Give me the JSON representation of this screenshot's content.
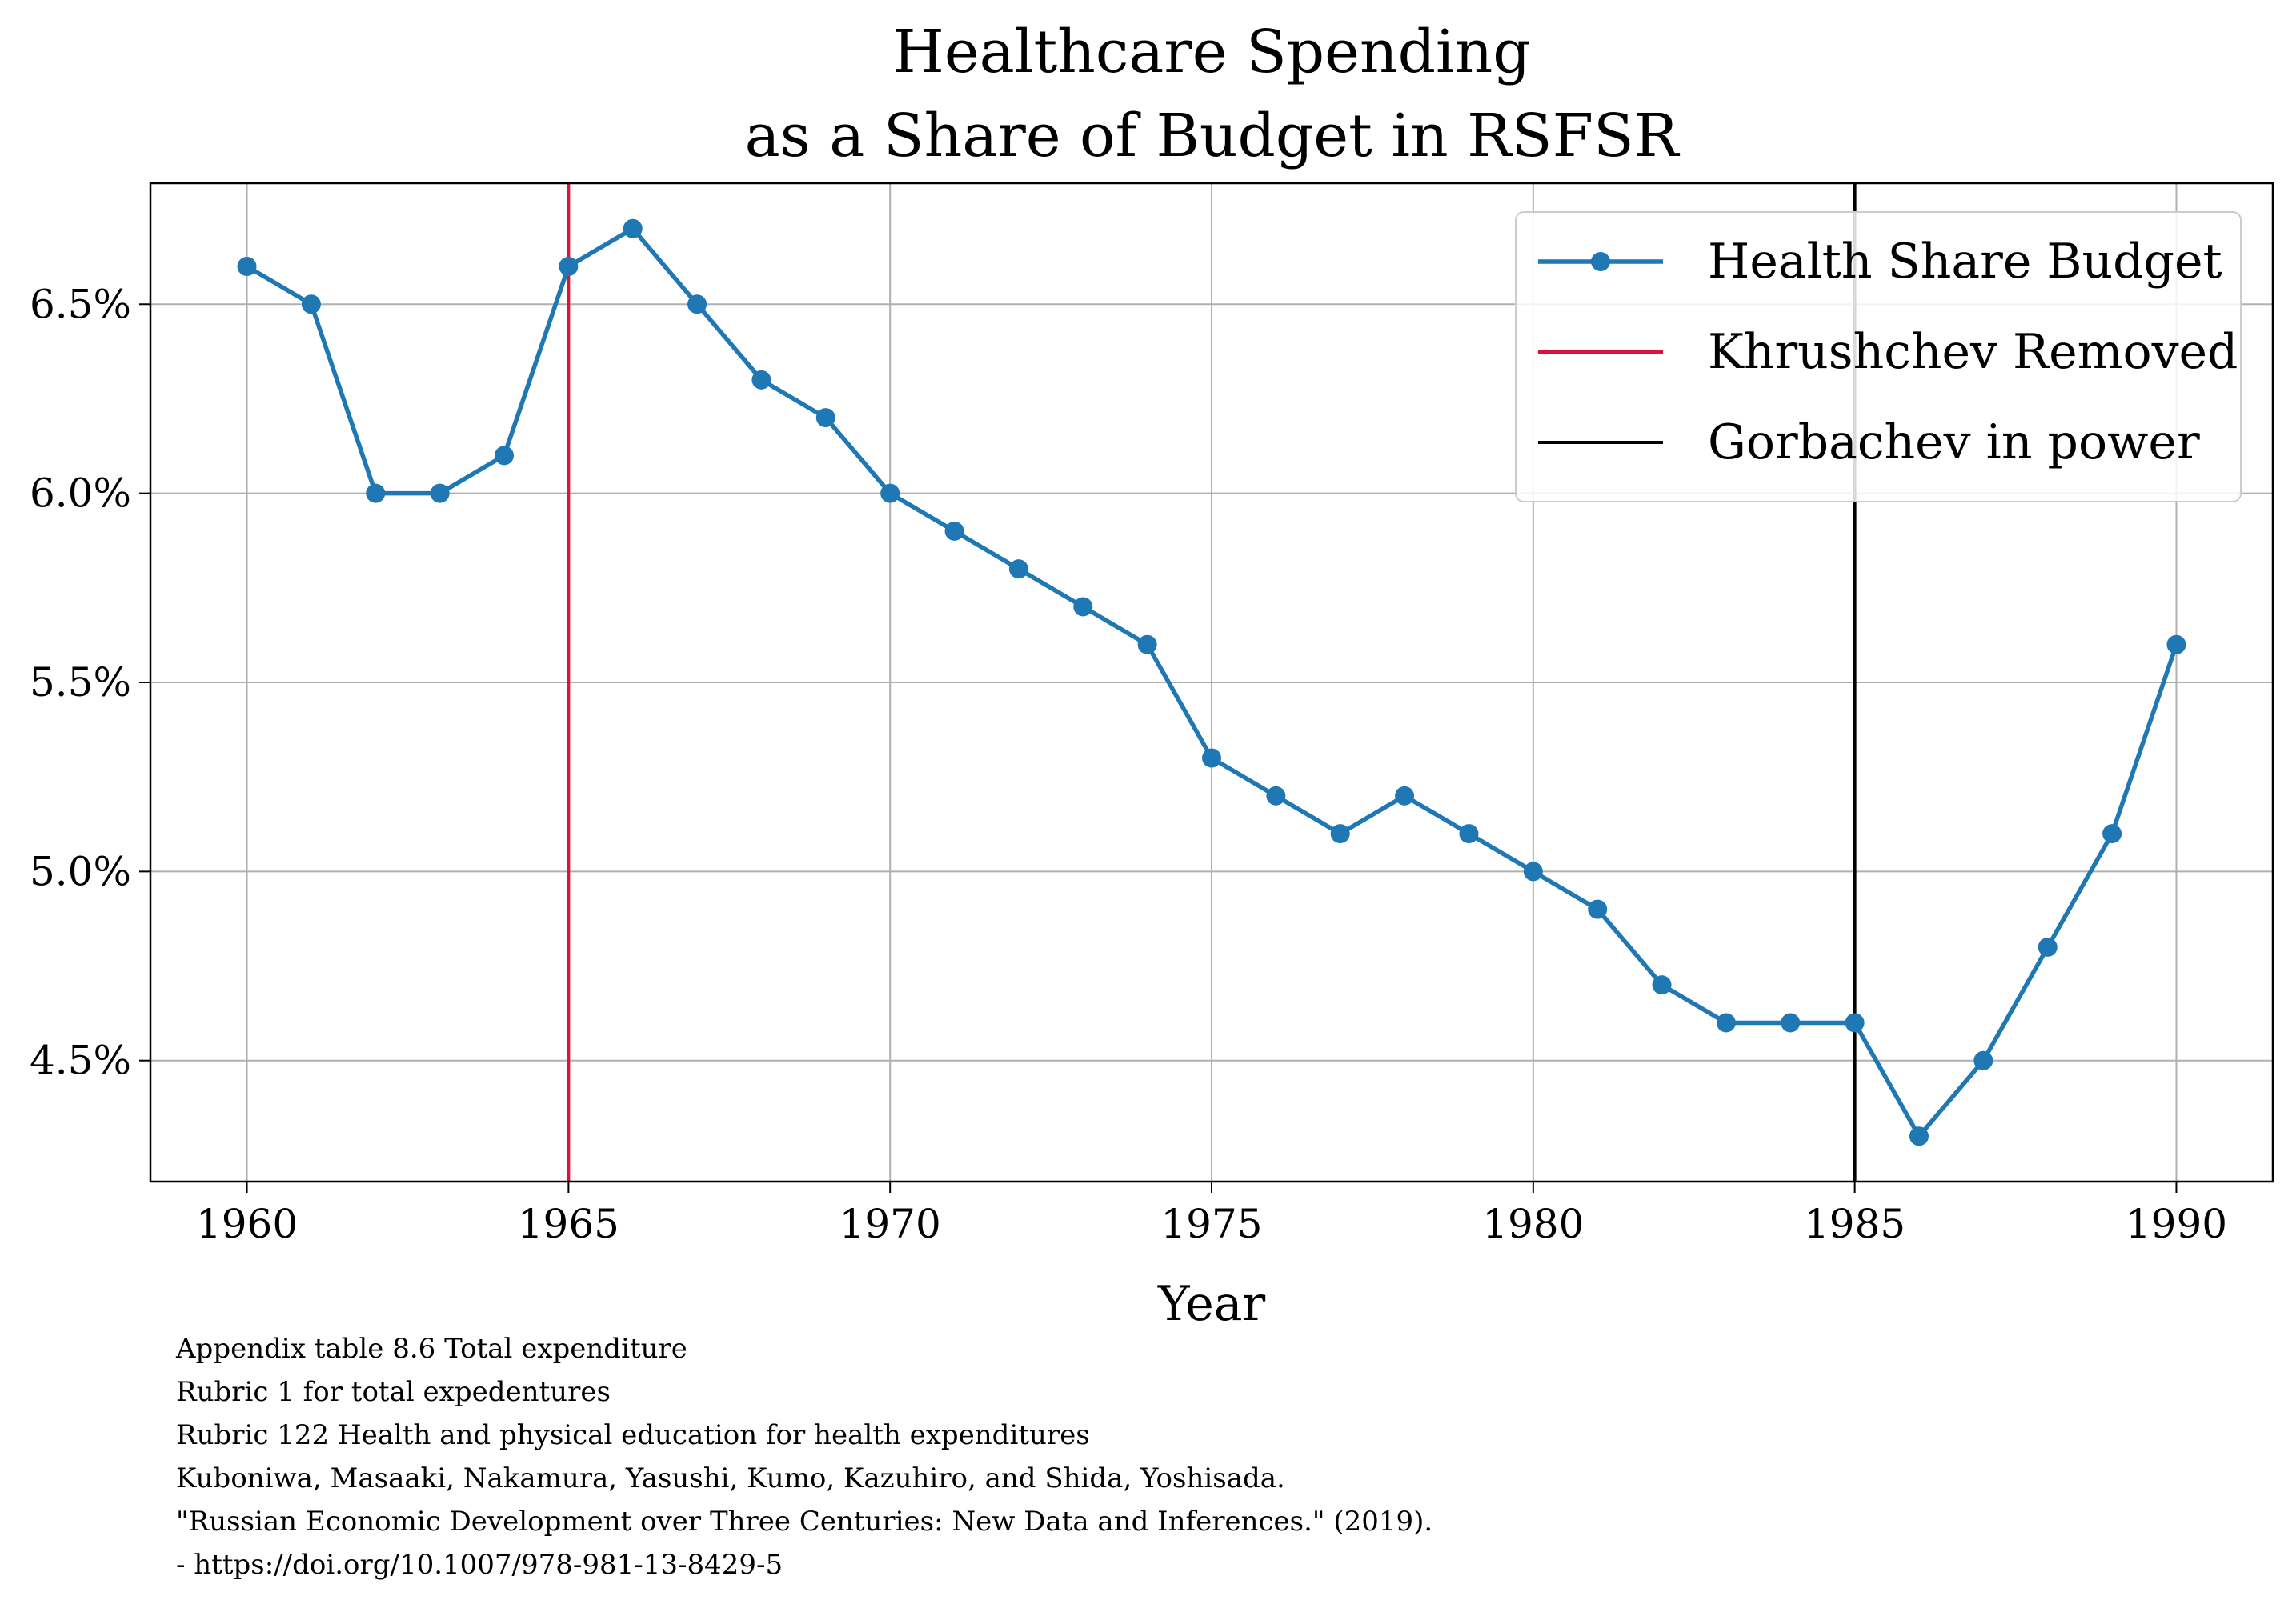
{
  "chart_data": {
    "type": "line",
    "title": "Healthcare Spending\nas a Share of Budget in RSFSR",
    "title_lines": [
      "Healthcare Spending",
      "as a Share of Budget in RSFSR"
    ],
    "xlabel": "Year",
    "ylabel": "",
    "xlim": [
      1958.5,
      1991.5
    ],
    "ylim": [
      4.18,
      6.82
    ],
    "grid": true,
    "legend_placement": "top-right",
    "x_ticks": [
      1960,
      1965,
      1970,
      1975,
      1980,
      1985,
      1990
    ],
    "x_tick_labels": [
      "1960",
      "1965",
      "1970",
      "1975",
      "1980",
      "1985",
      "1990"
    ],
    "y_ticks": [
      4.5,
      5.0,
      5.5,
      6.0,
      6.5
    ],
    "y_tick_labels": [
      "4.5%",
      "5.0%",
      "5.5%",
      "6.0%",
      "6.5%"
    ],
    "series": [
      {
        "name": "Health Share Budget",
        "color": "#1f77b4",
        "x": [
          1960,
          1961,
          1962,
          1963,
          1964,
          1965,
          1966,
          1967,
          1968,
          1969,
          1970,
          1971,
          1972,
          1973,
          1974,
          1975,
          1976,
          1977,
          1978,
          1979,
          1980,
          1981,
          1982,
          1983,
          1984,
          1985,
          1986,
          1987,
          1988,
          1989,
          1990
        ],
        "values": [
          6.6,
          6.5,
          6.0,
          6.0,
          6.1,
          6.6,
          6.7,
          6.5,
          6.3,
          6.2,
          6.0,
          5.9,
          5.8,
          5.7,
          5.6,
          5.3,
          5.2,
          5.1,
          5.2,
          5.1,
          5.0,
          4.9,
          4.7,
          4.6,
          4.6,
          4.6,
          4.3,
          4.5,
          4.8,
          5.1,
          5.6
        ]
      }
    ],
    "vlines": [
      {
        "name": "Khrushchev Removed",
        "x": 1965,
        "color": "#dc143c"
      },
      {
        "name": "Gorbachev in power",
        "x": 1985,
        "color": "#000000"
      }
    ],
    "footnotes": [
      "Appendix table 8.6 Total expenditure",
      "Rubric 1 for total expedentures",
      "Rubric 122 Health and physical education for health expenditures",
      "Kuboniwa, Masaaki, Nakamura, Yasushi, Kumo, Kazuhiro, and Shida, Yoshisada.",
      "\"Russian Economic Development over Three Centuries: New Data and Inferences.\" (2019).",
      " - https://doi.org/10.1007/978-981-13-8429-5"
    ]
  }
}
